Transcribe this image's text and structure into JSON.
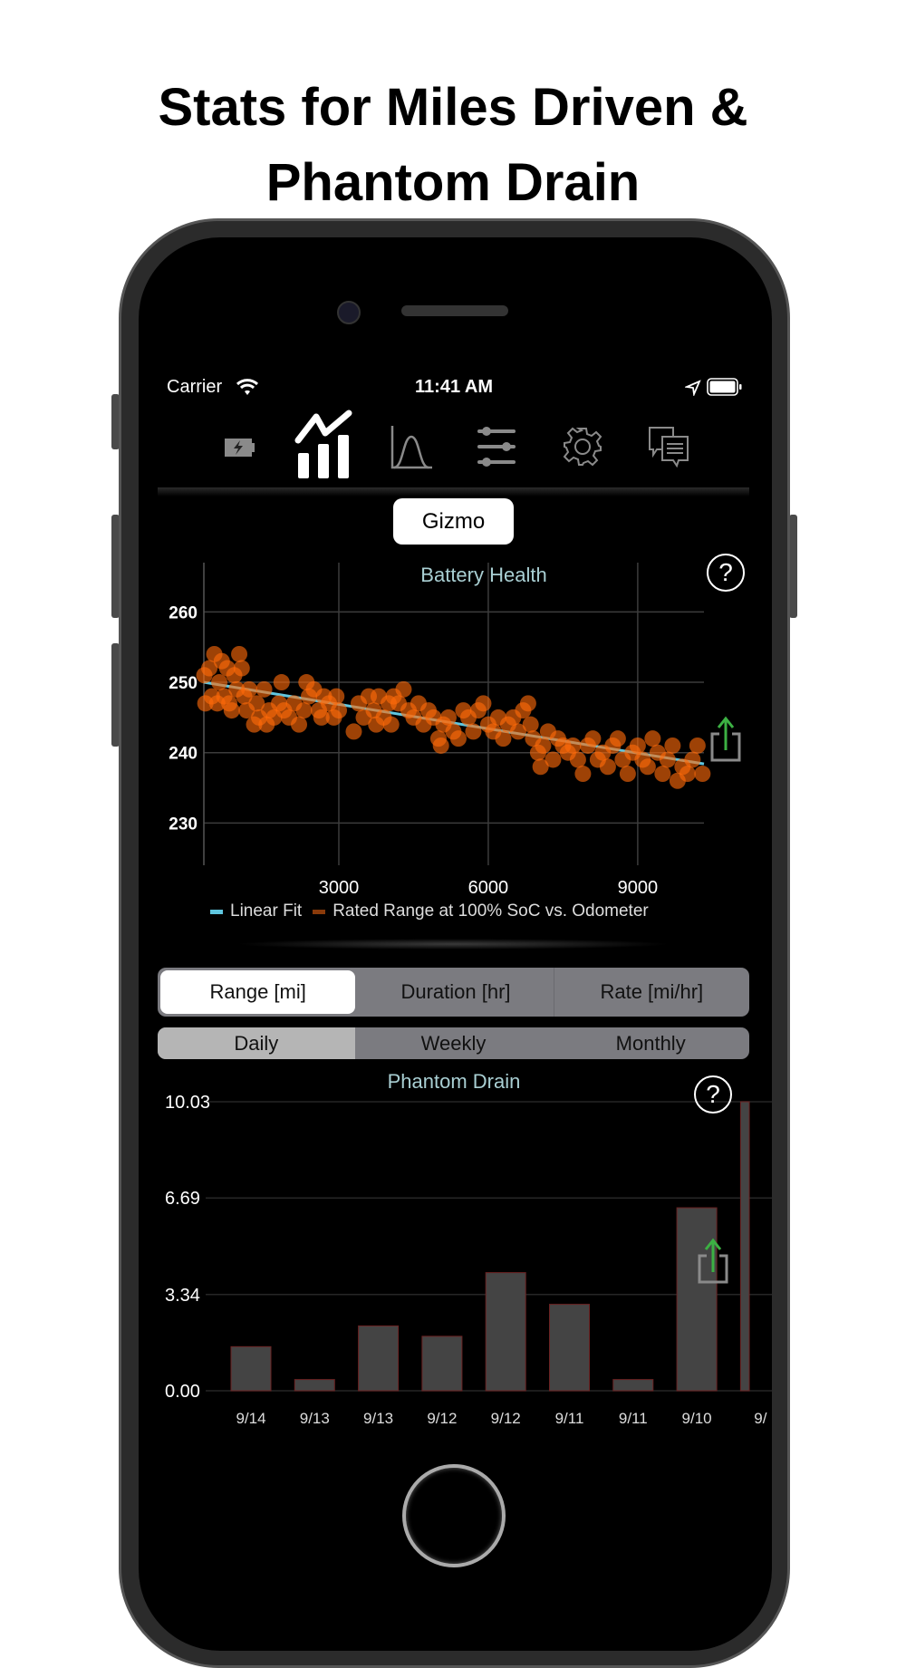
{
  "headline": {
    "line1": "Stats for Miles Driven &",
    "line2": "Phantom Drain"
  },
  "status_bar": {
    "carrier": "Carrier",
    "time": "11:41 AM"
  },
  "tab_icons": [
    "battery-charging-icon",
    "stats-chart-icon",
    "distribution-curve-icon",
    "sliders-icon",
    "gear-icon",
    "chat-bubbles-icon"
  ],
  "selected_tab": 1,
  "vehicle_button": "Gizmo",
  "colors": {
    "scatter": "#ff6a0a",
    "fit": "#5fc6df",
    "bar_fill": "#444444",
    "bar_edge": "#6b2222",
    "title": "#a9cfd3",
    "share_arrow": "#3cb043"
  },
  "chart_data": [
    {
      "type": "scatter",
      "title": "Battery Health",
      "xlim": [
        290,
        10330
      ],
      "ylim": [
        224,
        267
      ],
      "xticks": [
        "3000",
        "6000",
        "9000"
      ],
      "yticks": [
        "260",
        "250",
        "240",
        "230"
      ],
      "grid": true,
      "legend_placement": "bottom",
      "series": [
        {
          "name": "Linear Fit",
          "type": "line",
          "points": [
            [
              290,
              250.0
            ],
            [
              10330,
              238.4
            ]
          ]
        },
        {
          "name": "Rated Range at 100% SoC vs. Odometer",
          "type": "scatter",
          "points": [
            [
              300,
              251
            ],
            [
              320,
              247
            ],
            [
              400,
              252
            ],
            [
              450,
              248
            ],
            [
              500,
              254
            ],
            [
              560,
              247
            ],
            [
              600,
              250
            ],
            [
              650,
              253
            ],
            [
              700,
              248
            ],
            [
              760,
              252
            ],
            [
              800,
              247
            ],
            [
              850,
              246
            ],
            [
              900,
              251
            ],
            [
              950,
              249
            ],
            [
              1000,
              254
            ],
            [
              1050,
              252
            ],
            [
              1100,
              248
            ],
            [
              1150,
              246
            ],
            [
              1200,
              249
            ],
            [
              1300,
              244
            ],
            [
              1350,
              247
            ],
            [
              1400,
              245
            ],
            [
              1500,
              249
            ],
            [
              1550,
              244
            ],
            [
              1600,
              246
            ],
            [
              1700,
              245
            ],
            [
              1800,
              247
            ],
            [
              1850,
              250
            ],
            [
              1900,
              246
            ],
            [
              2000,
              245
            ],
            [
              2100,
              247
            ],
            [
              2200,
              244
            ],
            [
              2300,
              246
            ],
            [
              2350,
              250
            ],
            [
              2400,
              248
            ],
            [
              2500,
              249
            ],
            [
              2600,
              246
            ],
            [
              2650,
              245
            ],
            [
              2700,
              248
            ],
            [
              2800,
              247
            ],
            [
              2900,
              245
            ],
            [
              2950,
              248
            ],
            [
              3000,
              246
            ],
            [
              3300,
              243
            ],
            [
              3400,
              247
            ],
            [
              3500,
              245
            ],
            [
              3600,
              248
            ],
            [
              3700,
              246
            ],
            [
              3750,
              244
            ],
            [
              3800,
              248
            ],
            [
              3900,
              245
            ],
            [
              4000,
              247
            ],
            [
              4050,
              244
            ],
            [
              4100,
              248
            ],
            [
              4200,
              247
            ],
            [
              4300,
              249
            ],
            [
              4400,
              246
            ],
            [
              4500,
              245
            ],
            [
              4600,
              247
            ],
            [
              4700,
              244
            ],
            [
              4800,
              246
            ],
            [
              4900,
              245
            ],
            [
              5000,
              242
            ],
            [
              5050,
              241
            ],
            [
              5100,
              244
            ],
            [
              5200,
              245
            ],
            [
              5300,
              243
            ],
            [
              5400,
              242
            ],
            [
              5500,
              246
            ],
            [
              5600,
              245
            ],
            [
              5700,
              243
            ],
            [
              5800,
              246
            ],
            [
              5900,
              247
            ],
            [
              6000,
              244
            ],
            [
              6100,
              243
            ],
            [
              6200,
              245
            ],
            [
              6300,
              242
            ],
            [
              6400,
              244
            ],
            [
              6500,
              245
            ],
            [
              6600,
              243
            ],
            [
              6700,
              246
            ],
            [
              6800,
              247
            ],
            [
              6850,
              244
            ],
            [
              6900,
              242
            ],
            [
              7000,
              240
            ],
            [
              7050,
              238
            ],
            [
              7100,
              241
            ],
            [
              7200,
              243
            ],
            [
              7300,
              239
            ],
            [
              7400,
              242
            ],
            [
              7500,
              241
            ],
            [
              7600,
              240
            ],
            [
              7700,
              241
            ],
            [
              7800,
              239
            ],
            [
              7900,
              237
            ],
            [
              8000,
              241
            ],
            [
              8100,
              242
            ],
            [
              8200,
              239
            ],
            [
              8300,
              240
            ],
            [
              8400,
              238
            ],
            [
              8500,
              241
            ],
            [
              8600,
              242
            ],
            [
              8700,
              239
            ],
            [
              8800,
              237
            ],
            [
              8900,
              240
            ],
            [
              9000,
              241
            ],
            [
              9100,
              239
            ],
            [
              9200,
              238
            ],
            [
              9300,
              242
            ],
            [
              9400,
              240
            ],
            [
              9500,
              237
            ],
            [
              9600,
              239
            ],
            [
              9700,
              241
            ],
            [
              9800,
              236
            ],
            [
              9900,
              238
            ],
            [
              10000,
              237
            ],
            [
              10100,
              239
            ],
            [
              10200,
              241
            ],
            [
              10300,
              237
            ]
          ]
        }
      ]
    },
    {
      "type": "bar",
      "title": "Phantom Drain",
      "categories": [
        "9/14",
        "9/13",
        "9/13",
        "9/12",
        "9/12",
        "9/11",
        "9/11",
        "9/10",
        "9/"
      ],
      "values": [
        1.53,
        0.39,
        2.25,
        1.89,
        4.1,
        3.0,
        0.39,
        6.35,
        10.03
      ],
      "yticks": [
        "10.03",
        "6.69",
        "3.34",
        "0.00"
      ],
      "ylim": [
        0,
        10.03
      ],
      "grid": true
    }
  ],
  "metric_segments": {
    "items": [
      "Range [mi]",
      "Duration [hr]",
      "Rate [mi/hr]"
    ],
    "selected": 0
  },
  "period_segments": {
    "items": [
      "Daily",
      "Weekly",
      "Monthly"
    ],
    "selected": 0
  }
}
